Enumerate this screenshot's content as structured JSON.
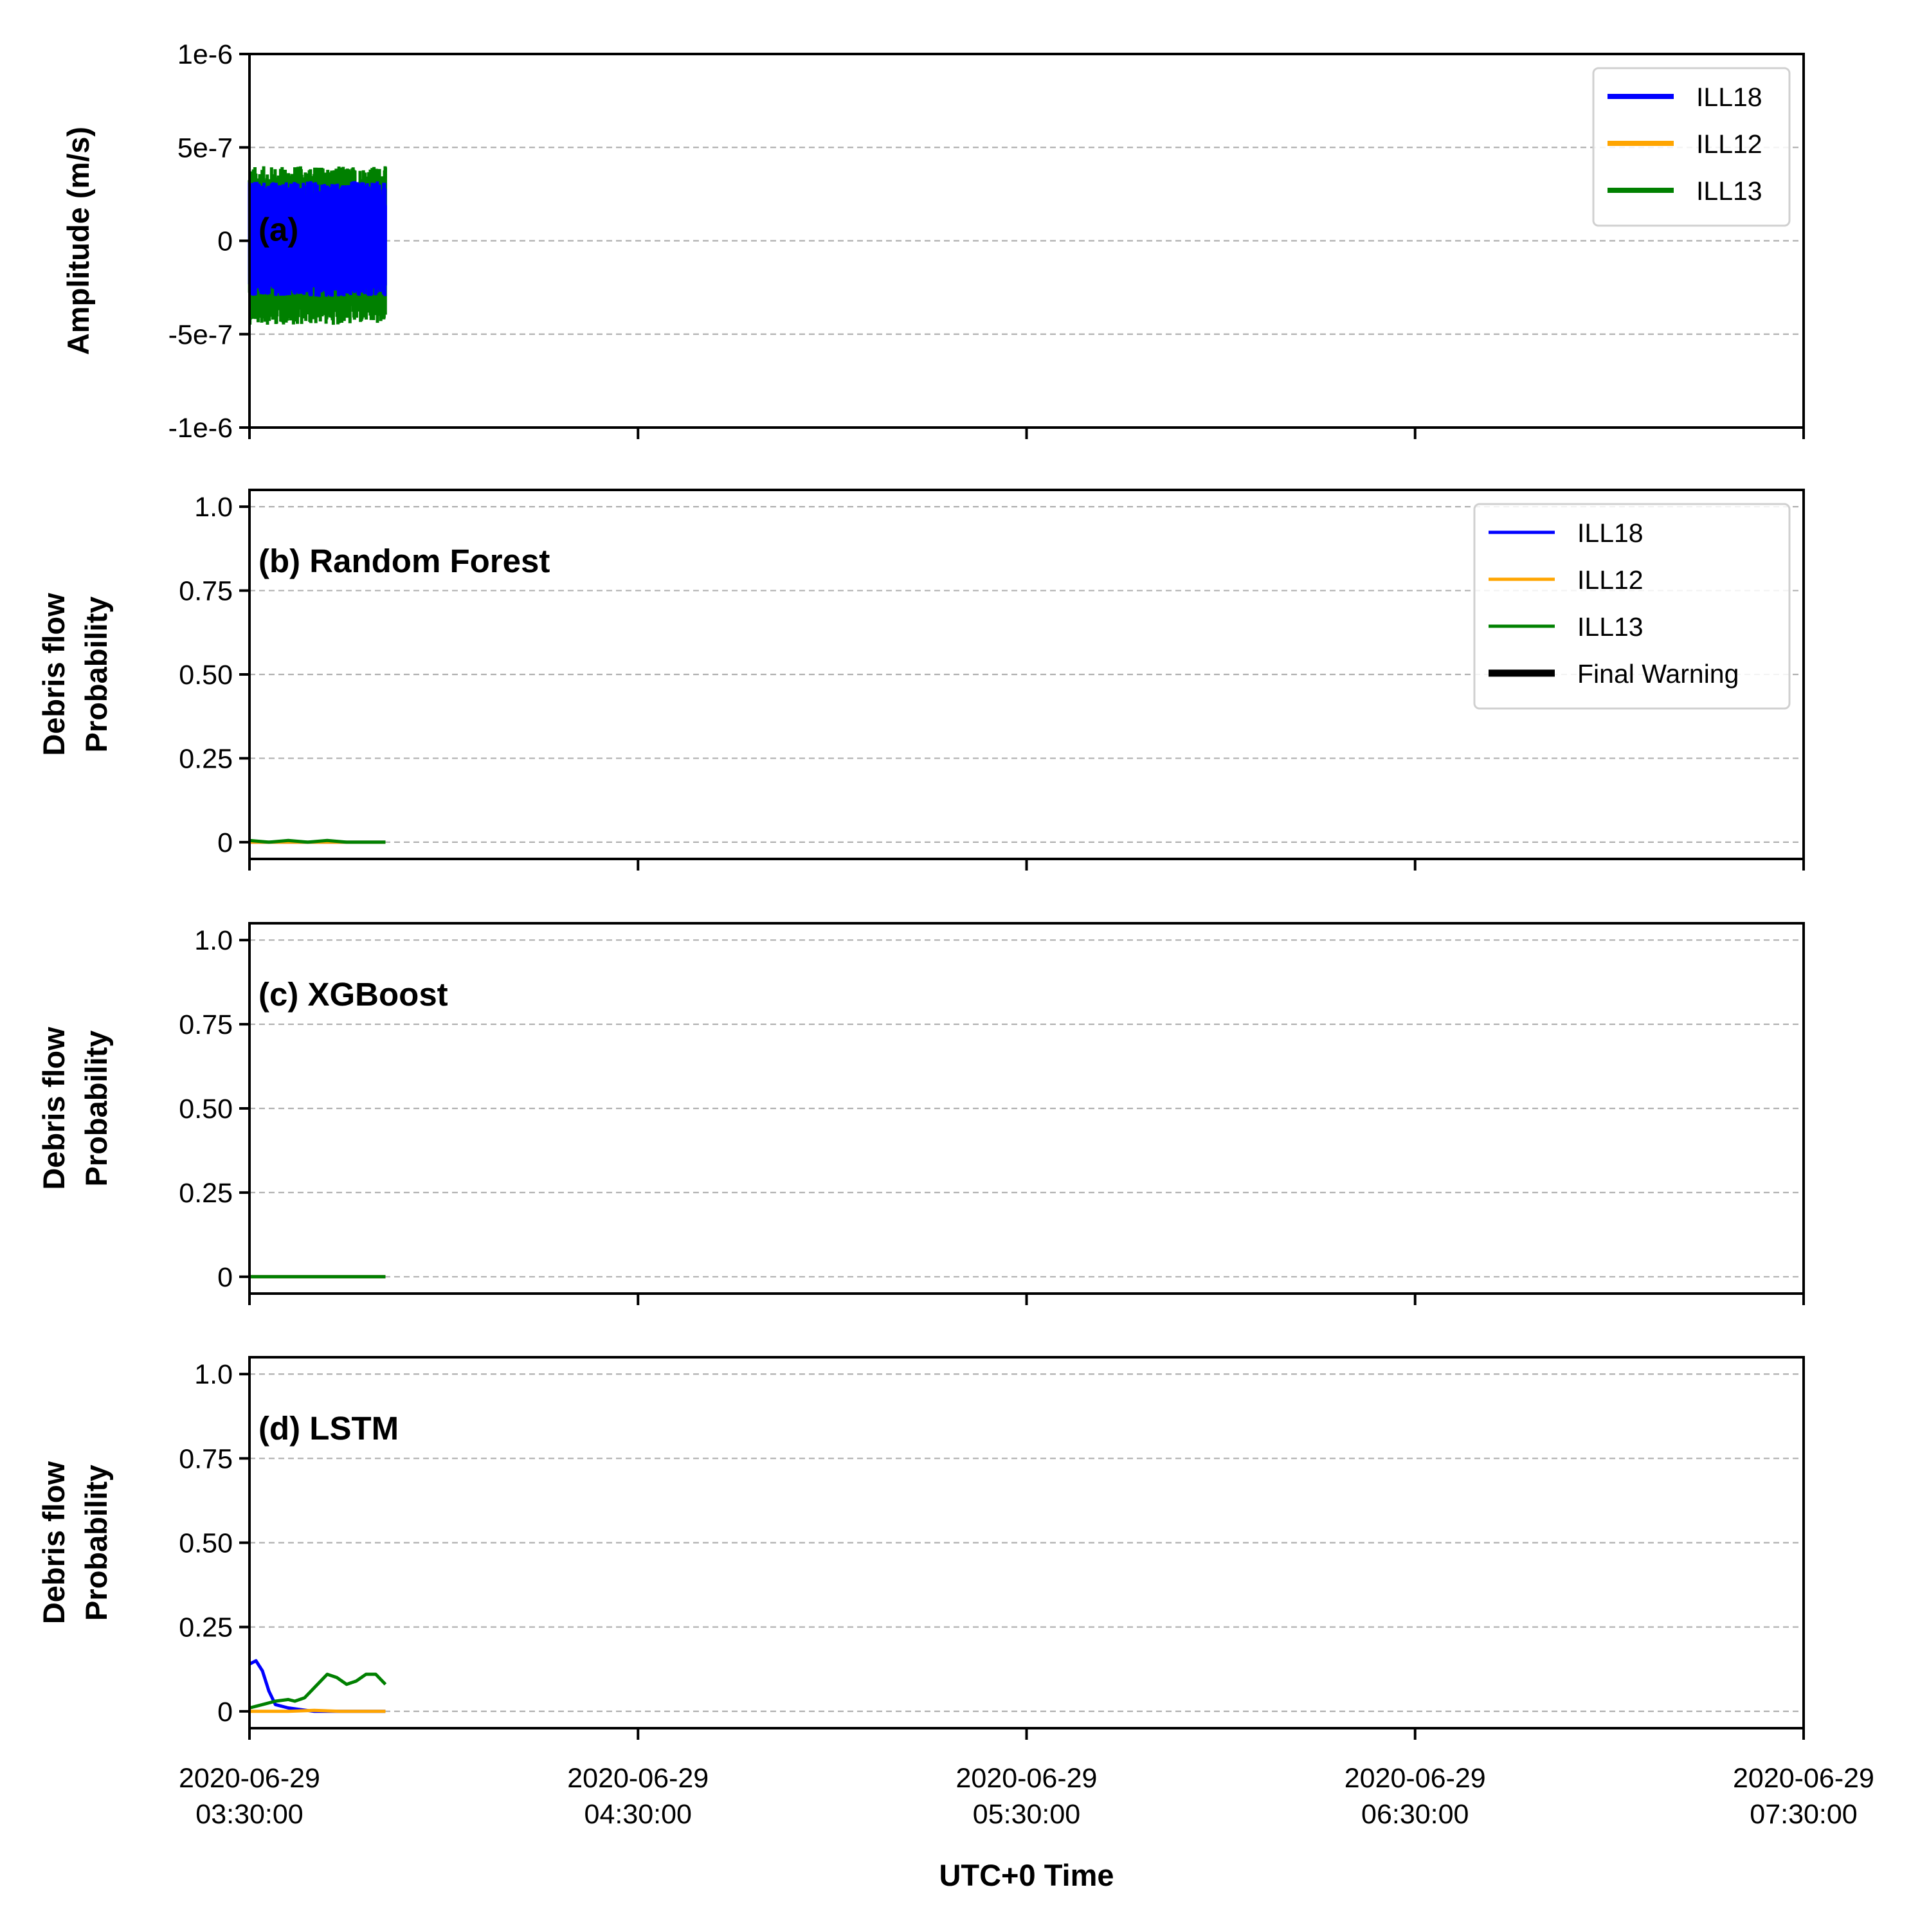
{
  "colors": {
    "ILL18": "#0000ff",
    "ILL12": "#ffa500",
    "ILL13": "#008000",
    "Final Warning": "#000000"
  },
  "x_ticks": [
    [
      "2020-06-29",
      "03:30:00"
    ],
    [
      "2020-06-29",
      "04:30:00"
    ],
    [
      "2020-06-29",
      "05:30:00"
    ],
    [
      "2020-06-29",
      "06:30:00"
    ],
    [
      "2020-06-29",
      "07:30:00"
    ]
  ],
  "xlabel": "UTC+0 Time",
  "chart_data": [
    {
      "type": "line",
      "label": "(a)",
      "ylabel": "Amplitude (m/s)",
      "ylim": [
        -1e-06,
        1e-06
      ],
      "y_ticks": [
        [
          1e-06,
          "1e-6"
        ],
        [
          5e-07,
          "5e-7"
        ],
        [
          0,
          "0"
        ],
        [
          -5e-07,
          "-5e-7"
        ],
        [
          -1e-06,
          "-1e-6"
        ]
      ],
      "xlim": [
        "2020-06-29 03:30:00",
        "2020-06-29 07:30:00"
      ],
      "grid": true,
      "legend": "top-right",
      "legend_entries": [
        "ILL18",
        "ILL12",
        "ILL13"
      ],
      "series": [
        {
          "name": "ILL13",
          "note": "dense seismic trace",
          "time_range": [
            "03:30:00",
            "03:51:00"
          ],
          "envelope_max": 4e-07,
          "envelope_min": -4.5e-07
        },
        {
          "name": "ILL18",
          "note": "dense seismic trace",
          "time_range": [
            "03:30:00",
            "03:51:00"
          ],
          "envelope_max": 3.2e-07,
          "envelope_min": -3e-07
        }
      ]
    },
    {
      "type": "line",
      "label": "(b) Random Forest",
      "ylabel": [
        "Debris flow",
        "Probability"
      ],
      "ylim": [
        -0.05,
        1.05
      ],
      "y_ticks": [
        [
          1.0,
          "1.0"
        ],
        [
          0.75,
          "0.75"
        ],
        [
          0.5,
          "0.50"
        ],
        [
          0.25,
          "0.25"
        ],
        [
          0,
          "0"
        ]
      ],
      "grid": true,
      "legend": "top-right",
      "legend_entries": [
        "ILL18",
        "ILL12",
        "ILL13",
        "Final Warning"
      ],
      "series": [
        {
          "name": "ILL18",
          "x": [
            "03:30:00",
            "03:33:00",
            "03:36:00",
            "03:39:00",
            "03:42:00",
            "03:45:00",
            "03:48:00",
            "03:51:00"
          ],
          "values": [
            0.0,
            0.0,
            0.0,
            0.0,
            0.0,
            0.0,
            0.0,
            0.0
          ]
        },
        {
          "name": "ILL12",
          "x": [
            "03:30:00",
            "03:33:00",
            "03:36:00",
            "03:39:00",
            "03:42:00",
            "03:45:00",
            "03:48:00",
            "03:51:00"
          ],
          "values": [
            0.0,
            0.0,
            0.0,
            0.0,
            0.0,
            0.0,
            0.0,
            0.0
          ]
        },
        {
          "name": "ILL13",
          "x": [
            "03:30:00",
            "03:33:00",
            "03:36:00",
            "03:39:00",
            "03:42:00",
            "03:45:00",
            "03:48:00",
            "03:51:00"
          ],
          "values": [
            0.005,
            0.0,
            0.005,
            0.0,
            0.005,
            0.0,
            0.0,
            0.0
          ]
        }
      ]
    },
    {
      "type": "line",
      "label": "(c) XGBoost",
      "ylabel": [
        "Debris flow",
        "Probability"
      ],
      "ylim": [
        -0.05,
        1.05
      ],
      "y_ticks": [
        [
          1.0,
          "1.0"
        ],
        [
          0.75,
          "0.75"
        ],
        [
          0.5,
          "0.50"
        ],
        [
          0.25,
          "0.25"
        ],
        [
          0,
          "0"
        ]
      ],
      "grid": true,
      "series": [
        {
          "name": "ILL18",
          "x": [
            "03:30:00",
            "03:51:00"
          ],
          "values": [
            0.0,
            0.0
          ]
        },
        {
          "name": "ILL12",
          "x": [
            "03:30:00",
            "03:51:00"
          ],
          "values": [
            0.0,
            0.0
          ]
        },
        {
          "name": "ILL13",
          "x": [
            "03:30:00",
            "03:51:00"
          ],
          "values": [
            0.0,
            0.0
          ]
        }
      ]
    },
    {
      "type": "line",
      "label": "(d) LSTM",
      "ylabel": [
        "Debris flow",
        "Probability"
      ],
      "ylim": [
        -0.05,
        1.05
      ],
      "y_ticks": [
        [
          1.0,
          "1.0"
        ],
        [
          0.75,
          "0.75"
        ],
        [
          0.5,
          "0.50"
        ],
        [
          0.25,
          "0.25"
        ],
        [
          0,
          "0"
        ]
      ],
      "grid": true,
      "series": [
        {
          "name": "ILL18",
          "x": [
            "03:30:00",
            "03:31:00",
            "03:32:00",
            "03:33:00",
            "03:34:00",
            "03:36:00",
            "03:38:00",
            "03:40:00",
            "03:44:00",
            "03:48:00",
            "03:51:00"
          ],
          "values": [
            0.14,
            0.15,
            0.12,
            0.06,
            0.02,
            0.01,
            0.005,
            0.0,
            0.0,
            0.0,
            0.0
          ]
        },
        {
          "name": "ILL12",
          "x": [
            "03:30:00",
            "03:36:00",
            "03:40:00",
            "03:44:00",
            "03:51:00"
          ],
          "values": [
            0.0,
            0.0,
            0.003,
            0.0,
            0.0
          ]
        },
        {
          "name": "ILL13",
          "x": [
            "03:30:00",
            "03:32:00",
            "03:34:00",
            "03:36:00",
            "03:37:00",
            "03:38:30",
            "03:40:00",
            "03:42:00",
            "03:43:30",
            "03:45:00",
            "03:46:30",
            "03:48:00",
            "03:49:30",
            "03:51:00"
          ],
          "values": [
            0.01,
            0.02,
            0.03,
            0.035,
            0.03,
            0.04,
            0.07,
            0.11,
            0.1,
            0.08,
            0.09,
            0.11,
            0.11,
            0.08
          ]
        }
      ]
    }
  ]
}
